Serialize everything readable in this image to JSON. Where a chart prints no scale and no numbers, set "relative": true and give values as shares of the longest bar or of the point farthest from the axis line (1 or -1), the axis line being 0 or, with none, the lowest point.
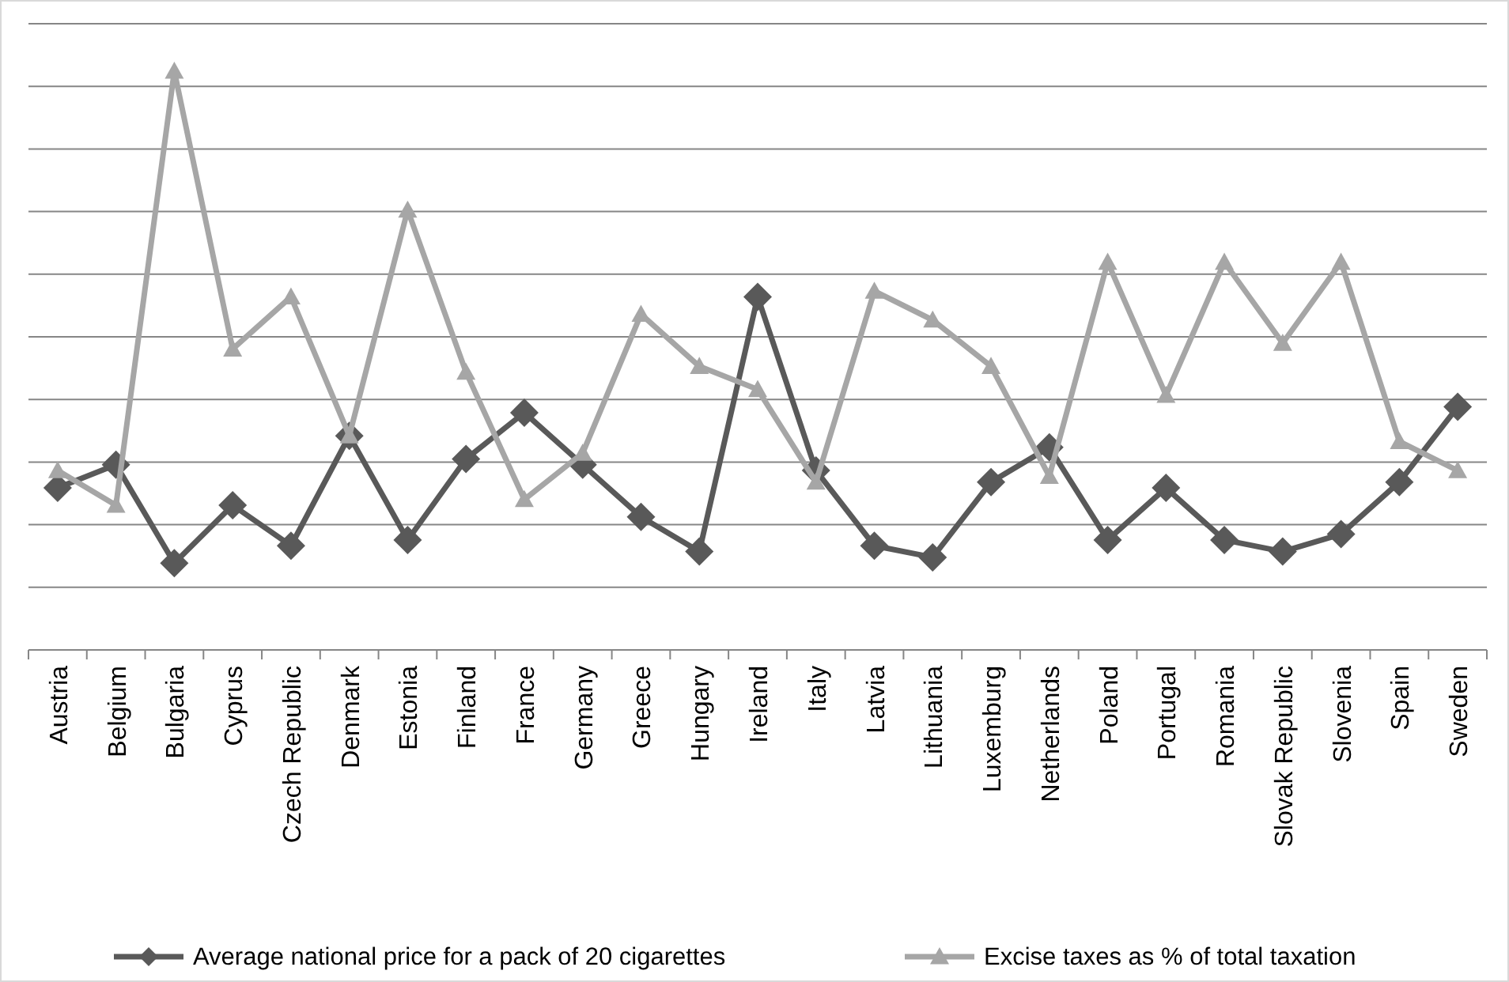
{
  "chart_data": {
    "type": "line",
    "relative": true,
    "grid": "y",
    "legend": "bottom",
    "line_style": "solid",
    "categories": [
      "Austria",
      "Belgium",
      "Bulgaria",
      "Cyprus",
      "Czech Republic",
      "Denmark",
      "Estonia",
      "Finland",
      "France",
      "Germany",
      "Greece",
      "Hungary",
      "Ireland",
      "Italy",
      "Latvia",
      "Lithuania",
      "Luxemburg",
      "Netherlands",
      "Poland",
      "Portugal",
      "Romania",
      "Slovak Republic",
      "Slovenia",
      "Spain",
      "Sweden"
    ],
    "series": [
      {
        "name": "Average national price for a pack of 20 cigarettes",
        "color": "#595959",
        "marker": "diamond",
        "values": [
          0.28,
          0.32,
          0.15,
          0.25,
          0.18,
          0.37,
          0.19,
          0.33,
          0.41,
          0.32,
          0.23,
          0.17,
          0.61,
          0.31,
          0.18,
          0.16,
          0.29,
          0.35,
          0.19,
          0.28,
          0.19,
          0.17,
          0.2,
          0.29,
          0.42
        ]
      },
      {
        "name": "Excise taxes as % of total taxation",
        "color": "#a6a6a6",
        "marker": "triangle",
        "values": [
          0.31,
          0.25,
          1,
          0.52,
          0.61,
          0.37,
          0.76,
          0.48,
          0.26,
          0.34,
          0.58,
          0.49,
          0.45,
          0.29,
          0.62,
          0.57,
          0.49,
          0.3,
          0.67,
          0.44,
          0.67,
          0.53,
          0.67,
          0.36,
          0.31
        ]
      }
    ]
  }
}
